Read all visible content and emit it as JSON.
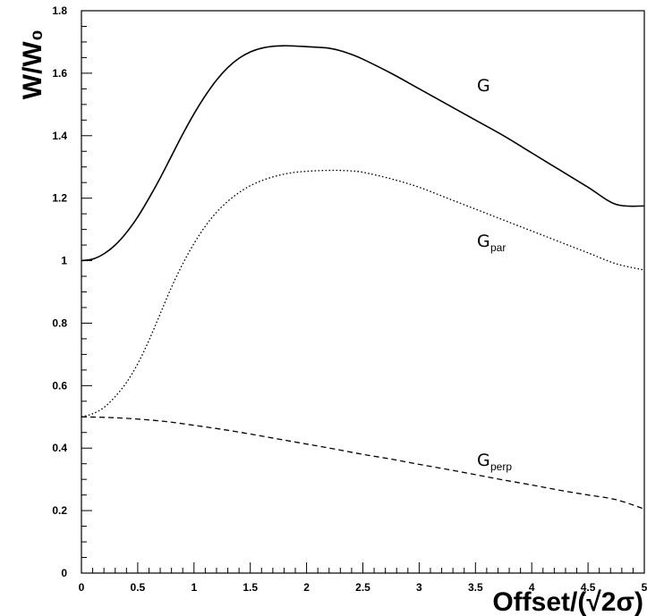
{
  "chart_data": {
    "type": "line",
    "title": "",
    "xlabel": "Offset/(√2σ)",
    "ylabel": "W/W₀",
    "xlim": [
      0,
      5
    ],
    "ylim": [
      0,
      1.8
    ],
    "x_ticks": [
      0,
      0.5,
      1,
      1.5,
      2,
      2.5,
      3,
      3.5,
      4,
      4.5,
      5
    ],
    "x_tick_labels": [
      "0",
      "0.5",
      "1",
      "1.5",
      "2",
      "2.5",
      "3",
      "3.5",
      "4",
      "4.5",
      "5"
    ],
    "y_ticks": [
      0,
      0.2,
      0.4,
      0.6,
      0.8,
      1,
      1.2,
      1.4,
      1.6,
      1.8
    ],
    "y_tick_labels": [
      "0",
      "0.2",
      "0.4",
      "0.6",
      "0.8",
      "1",
      "1.2",
      "1.4",
      "1.6",
      "1.8"
    ],
    "grid": false,
    "legend": "none",
    "series": [
      {
        "name": "G",
        "style": "solid",
        "color": "#000000",
        "label_main": "G",
        "label_sub": "",
        "x": [
          0,
          0.1,
          0.2,
          0.3,
          0.4,
          0.5,
          0.6,
          0.7,
          0.8,
          0.9,
          1.0,
          1.1,
          1.2,
          1.3,
          1.4,
          1.5,
          1.6,
          1.7,
          1.8,
          1.9,
          2.0,
          2.1,
          2.2,
          2.3,
          2.4,
          2.5,
          2.75,
          3.0,
          3.25,
          3.5,
          3.75,
          4.0,
          4.25,
          4.5,
          4.75,
          5.0
        ],
        "y": [
          1.0,
          1.005,
          1.022,
          1.05,
          1.09,
          1.14,
          1.2,
          1.265,
          1.335,
          1.405,
          1.47,
          1.528,
          1.578,
          1.618,
          1.648,
          1.668,
          1.68,
          1.686,
          1.688,
          1.687,
          1.685,
          1.683,
          1.68,
          1.672,
          1.66,
          1.645,
          1.6,
          1.55,
          1.5,
          1.45,
          1.4,
          1.345,
          1.29,
          1.235,
          1.18,
          1.175
        ]
      },
      {
        "name": "G_par",
        "style": "dotted",
        "color": "#000000",
        "label_main": "G",
        "label_sub": "par",
        "x": [
          0,
          0.1,
          0.2,
          0.3,
          0.4,
          0.5,
          0.6,
          0.7,
          0.8,
          0.9,
          1.0,
          1.1,
          1.2,
          1.3,
          1.4,
          1.5,
          1.6,
          1.7,
          1.8,
          1.9,
          2.0,
          2.1,
          2.2,
          2.3,
          2.4,
          2.5,
          2.75,
          3.0,
          3.25,
          3.5,
          3.75,
          4.0,
          4.25,
          4.5,
          4.75,
          5.0
        ],
        "y": [
          0.5,
          0.51,
          0.53,
          0.565,
          0.61,
          0.67,
          0.745,
          0.83,
          0.915,
          0.99,
          1.055,
          1.11,
          1.155,
          1.19,
          1.218,
          1.24,
          1.256,
          1.268,
          1.277,
          1.283,
          1.286,
          1.288,
          1.289,
          1.289,
          1.287,
          1.283,
          1.262,
          1.235,
          1.2,
          1.165,
          1.13,
          1.095,
          1.06,
          1.025,
          0.99,
          0.97
        ]
      },
      {
        "name": "G_perp",
        "style": "dashed",
        "color": "#000000",
        "label_main": "G",
        "label_sub": "perp",
        "x": [
          0,
          0.25,
          0.5,
          0.75,
          1.0,
          1.25,
          1.5,
          1.75,
          2.0,
          2.25,
          2.5,
          2.75,
          3.0,
          3.25,
          3.5,
          3.75,
          4.0,
          4.25,
          4.5,
          4.75,
          5.0
        ],
        "y": [
          0.5,
          0.498,
          0.493,
          0.485,
          0.473,
          0.46,
          0.445,
          0.429,
          0.413,
          0.397,
          0.38,
          0.365,
          0.348,
          0.332,
          0.315,
          0.298,
          0.282,
          0.265,
          0.25,
          0.235,
          0.205
        ]
      }
    ]
  }
}
